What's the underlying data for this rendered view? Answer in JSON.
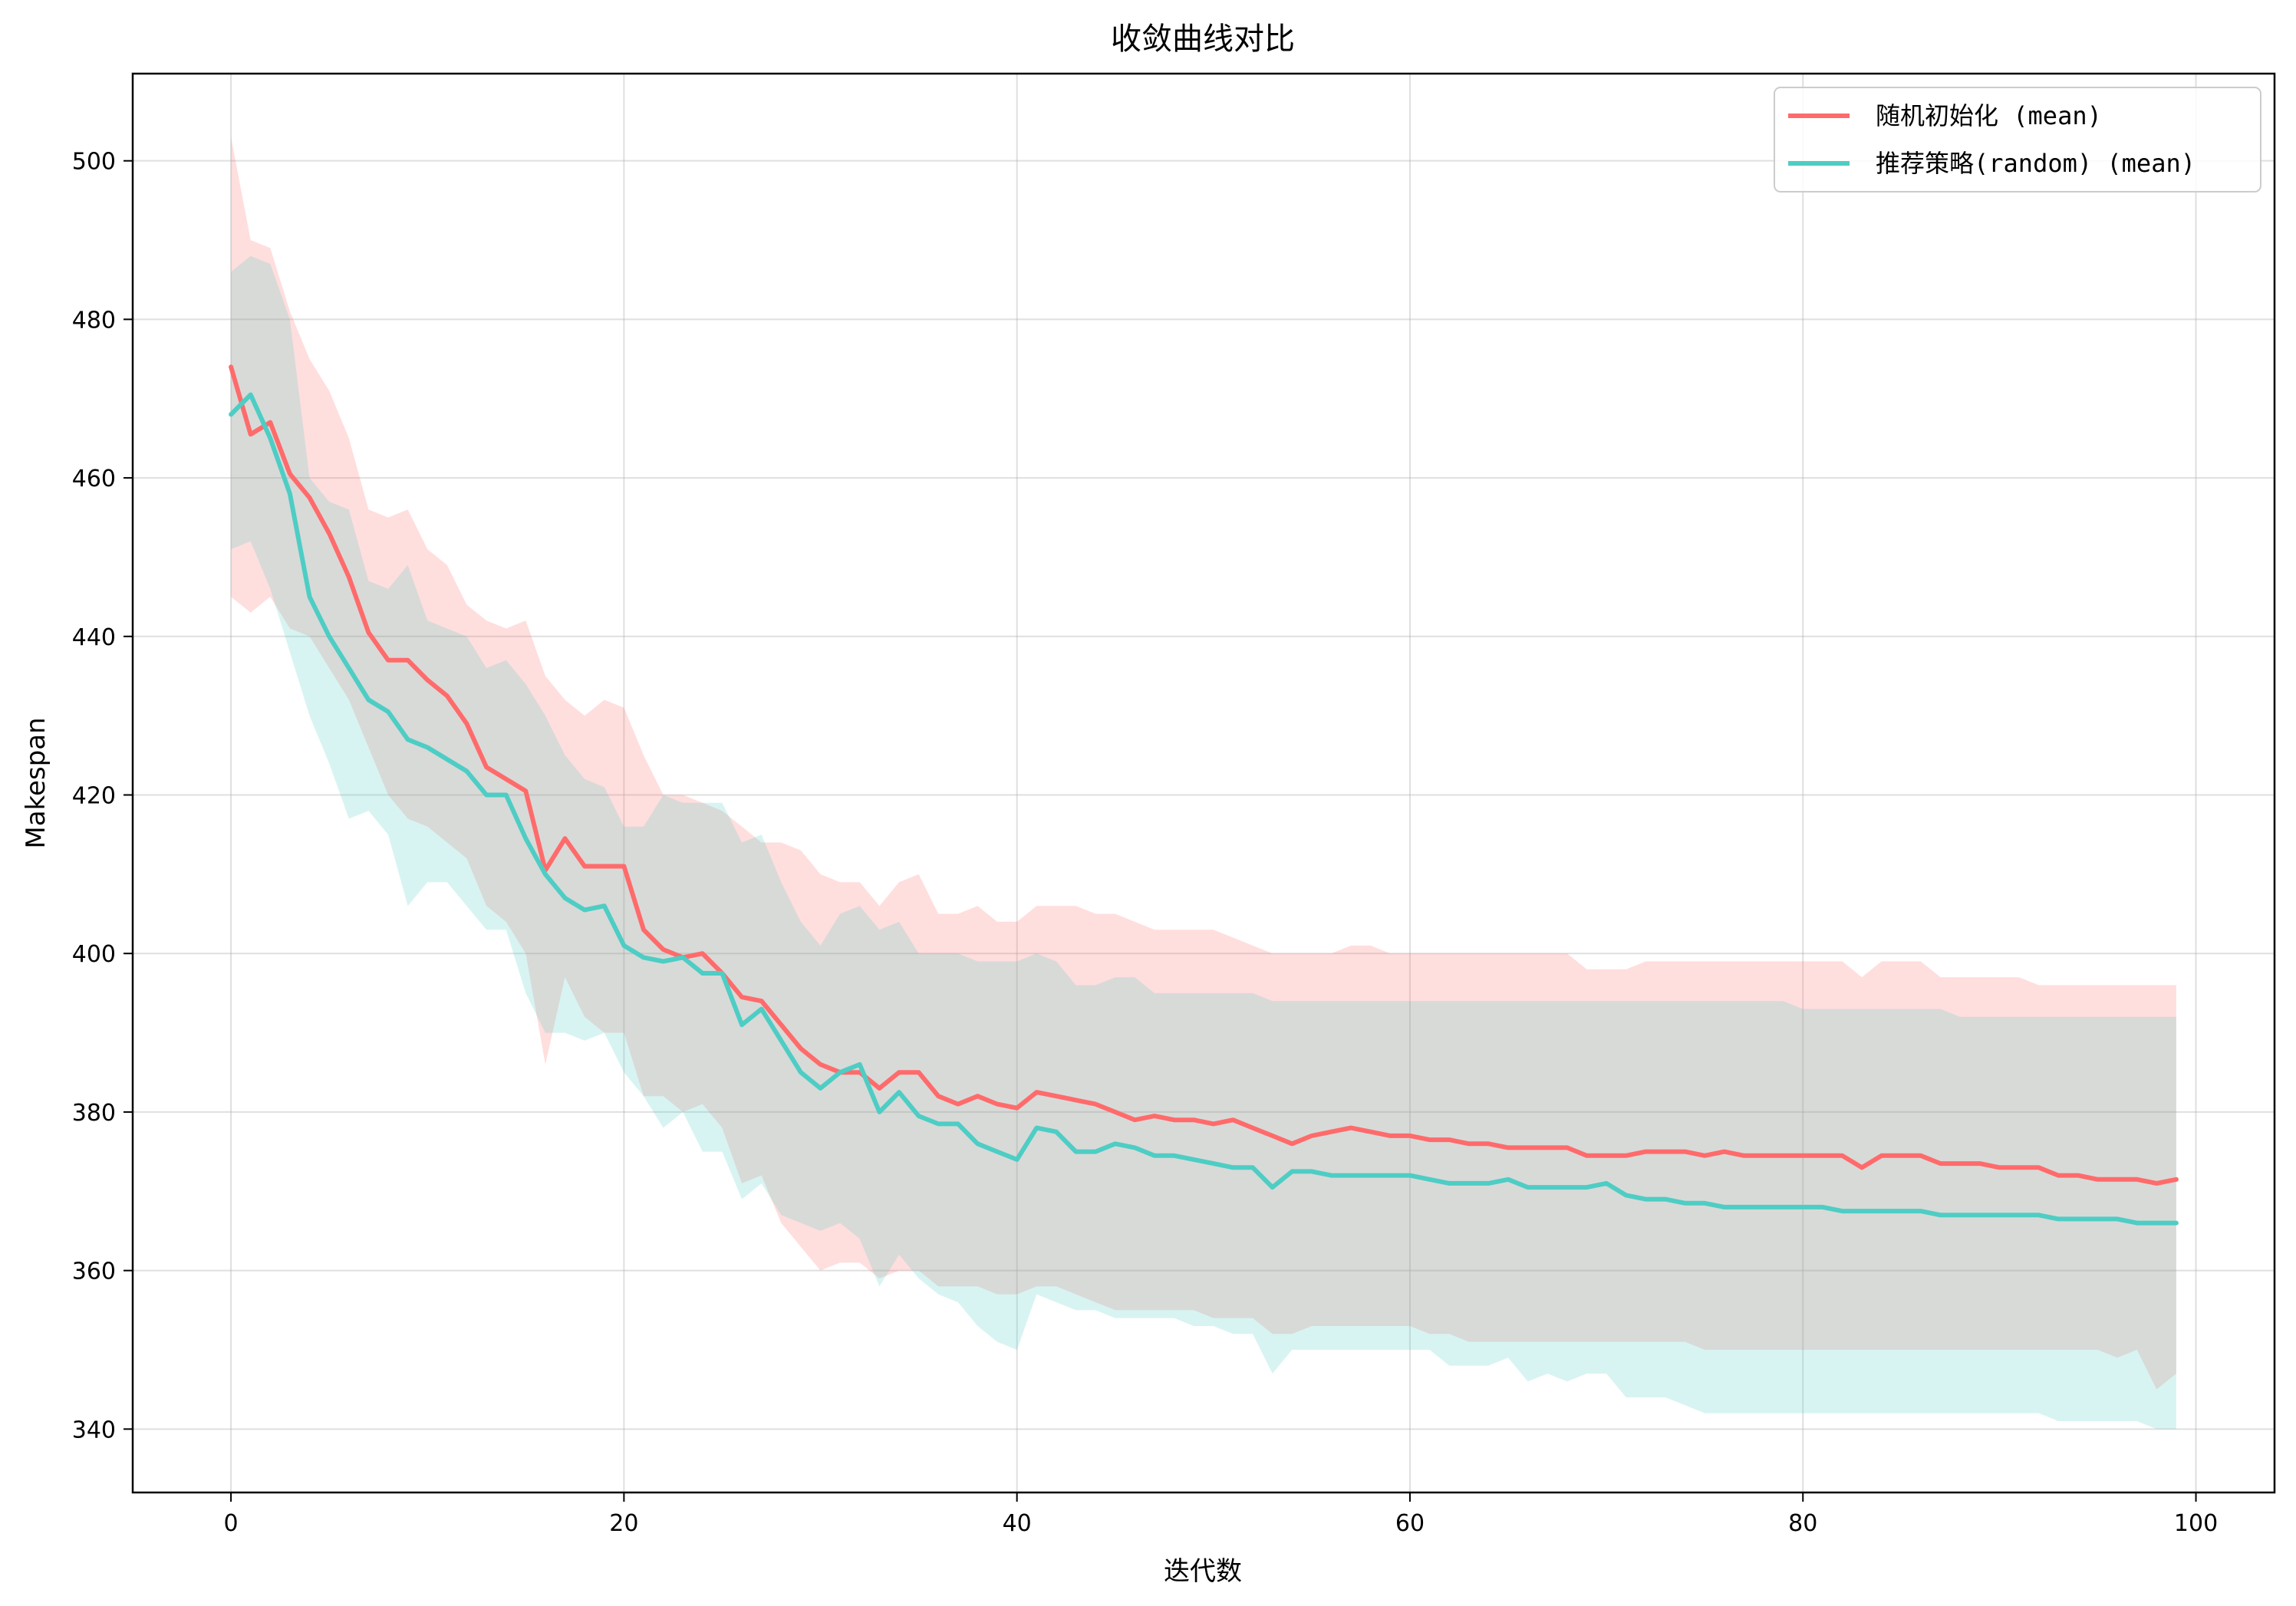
{
  "chart_data": {
    "type": "line",
    "title": "收敛曲线对比",
    "xlabel": "迭代数",
    "ylabel": "Makespan",
    "xlim": [
      -5,
      104
    ],
    "ylim": [
      332,
      511
    ],
    "xticks": [
      0,
      20,
      40,
      60,
      80,
      100
    ],
    "yticks": [
      340,
      360,
      380,
      400,
      420,
      440,
      460,
      480,
      500
    ],
    "grid": true,
    "legend_position": "top-right",
    "colors": {
      "series_0": "#ff6b6b",
      "series_1": "#4ecdc4"
    },
    "series": [
      {
        "name": "随机初始化 (mean)",
        "color": "#ff6b6b",
        "x": [
          0,
          1,
          2,
          3,
          4,
          5,
          6,
          7,
          8,
          9,
          10,
          11,
          12,
          13,
          14,
          15,
          16,
          17,
          18,
          19,
          20,
          21,
          22,
          23,
          24,
          25,
          26,
          27,
          28,
          29,
          30,
          31,
          32,
          33,
          34,
          35,
          36,
          37,
          38,
          39,
          40,
          41,
          42,
          43,
          44,
          45,
          46,
          47,
          48,
          49,
          50,
          51,
          52,
          53,
          54,
          55,
          56,
          57,
          58,
          59,
          60,
          61,
          62,
          63,
          64,
          65,
          66,
          67,
          68,
          69,
          70,
          71,
          72,
          73,
          74,
          75,
          76,
          77,
          78,
          79,
          80,
          81,
          82,
          83,
          84,
          85,
          86,
          87,
          88,
          89,
          90,
          91,
          92,
          93,
          94,
          95,
          96,
          97,
          98,
          99
        ],
        "values": [
          474,
          465.5,
          467,
          460.5,
          457.5,
          453,
          447.5,
          440.5,
          437,
          437,
          434.5,
          432.5,
          429,
          423.5,
          422,
          420.5,
          410.5,
          414.5,
          411,
          411,
          411,
          403,
          400.5,
          399.5,
          400,
          397.5,
          394.5,
          394,
          391,
          388,
          386,
          385,
          385,
          383,
          385,
          385,
          382,
          381,
          382,
          381,
          380.5,
          382.5,
          382,
          381.5,
          381,
          380,
          379,
          379.5,
          379,
          379,
          378.5,
          379,
          378,
          377,
          376,
          377,
          377.5,
          378,
          377.5,
          377,
          377,
          376.5,
          376.5,
          376,
          376,
          375.5,
          375.5,
          375.5,
          375.5,
          374.5,
          374.5,
          374.5,
          375,
          375,
          375,
          374.5,
          375,
          374.5,
          374.5,
          374.5,
          374.5,
          374.5,
          374.5,
          373,
          374.5,
          374.5,
          374.5,
          373.5,
          373.5,
          373.5,
          373,
          373,
          373,
          372,
          372,
          371.5,
          371.5,
          371.5,
          371,
          371.5
        ],
        "upper": [
          503,
          490,
          489,
          481,
          475,
          471,
          465,
          456,
          455,
          456,
          451,
          449,
          444,
          442,
          441,
          442,
          435,
          432,
          430,
          432,
          431,
          425,
          420,
          420,
          419,
          418,
          416,
          414,
          414,
          413,
          410,
          409,
          409,
          406,
          409,
          410,
          405,
          405,
          406,
          404,
          404,
          406,
          406,
          406,
          405,
          405,
          404,
          403,
          403,
          403,
          403,
          402,
          401,
          400,
          400,
          400,
          400,
          401,
          401,
          400,
          400,
          400,
          400,
          400,
          400,
          400,
          400,
          400,
          400,
          398,
          398,
          398,
          399,
          399,
          399,
          399,
          399,
          399,
          399,
          399,
          399,
          399,
          399,
          397,
          399,
          399,
          399,
          397,
          397,
          397,
          397,
          397,
          396,
          396,
          396,
          396,
          396,
          396,
          396,
          396
        ],
        "lower": [
          445,
          443,
          445,
          441,
          440,
          436,
          432,
          426,
          420,
          417,
          416,
          414,
          412,
          406,
          404,
          400,
          386,
          397,
          392,
          390,
          390,
          382,
          382,
          380,
          381,
          378,
          371,
          372,
          366,
          363,
          360,
          361,
          361,
          359,
          360,
          360,
          358,
          358,
          358,
          357,
          357,
          358,
          358,
          357,
          356,
          355,
          355,
          355,
          355,
          355,
          354,
          354,
          354,
          352,
          352,
          353,
          353,
          353,
          353,
          353,
          353,
          352,
          352,
          351,
          351,
          351,
          351,
          351,
          351,
          351,
          351,
          351,
          351,
          351,
          351,
          350,
          350,
          350,
          350,
          350,
          350,
          350,
          350,
          350,
          350,
          350,
          350,
          350,
          350,
          350,
          350,
          350,
          350,
          350,
          350,
          350,
          349,
          350,
          345,
          347
        ]
      },
      {
        "name": "推荐策略(random) (mean)",
        "color": "#4ecdc4",
        "x": [
          0,
          1,
          2,
          3,
          4,
          5,
          6,
          7,
          8,
          9,
          10,
          11,
          12,
          13,
          14,
          15,
          16,
          17,
          18,
          19,
          20,
          21,
          22,
          23,
          24,
          25,
          26,
          27,
          28,
          29,
          30,
          31,
          32,
          33,
          34,
          35,
          36,
          37,
          38,
          39,
          40,
          41,
          42,
          43,
          44,
          45,
          46,
          47,
          48,
          49,
          50,
          51,
          52,
          53,
          54,
          55,
          56,
          57,
          58,
          59,
          60,
          61,
          62,
          63,
          64,
          65,
          66,
          67,
          68,
          69,
          70,
          71,
          72,
          73,
          74,
          75,
          76,
          77,
          78,
          79,
          80,
          81,
          82,
          83,
          84,
          85,
          86,
          87,
          88,
          89,
          90,
          91,
          92,
          93,
          94,
          95,
          96,
          97,
          98,
          99
        ],
        "values": [
          468,
          470.5,
          465,
          458,
          445,
          440,
          436,
          432,
          430.5,
          427,
          426,
          424.5,
          423,
          420,
          420,
          414.5,
          410,
          407,
          405.5,
          406,
          401,
          399.5,
          399,
          399.5,
          397.5,
          397.5,
          391,
          393,
          389,
          385,
          383,
          385,
          386,
          380,
          382.5,
          379.5,
          378.5,
          378.5,
          376,
          375,
          374,
          378,
          377.5,
          375,
          375,
          376,
          375.5,
          374.5,
          374.5,
          374,
          373.5,
          373,
          373,
          370.5,
          372.5,
          372.5,
          372,
          372,
          372,
          372,
          372,
          371.5,
          371,
          371,
          371,
          371.5,
          370.5,
          370.5,
          370.5,
          370.5,
          371,
          369.5,
          369,
          369,
          368.5,
          368.5,
          368,
          368,
          368,
          368,
          368,
          368,
          367.5,
          367.5,
          367.5,
          367.5,
          367.5,
          367,
          367,
          367,
          367,
          367,
          367,
          366.5,
          366.5,
          366.5,
          366.5,
          366,
          366,
          366
        ],
        "upper": [
          486,
          488,
          487,
          480,
          460,
          457,
          456,
          447,
          446,
          449,
          442,
          441,
          440,
          436,
          437,
          434,
          430,
          425,
          422,
          421,
          416,
          416,
          420,
          419,
          419,
          419,
          414,
          415,
          409,
          404,
          401,
          405,
          406,
          403,
          404,
          400,
          400,
          400,
          399,
          399,
          399,
          400,
          399,
          396,
          396,
          397,
          397,
          395,
          395,
          395,
          395,
          395,
          395,
          394,
          394,
          394,
          394,
          394,
          394,
          394,
          394,
          394,
          394,
          394,
          394,
          394,
          394,
          394,
          394,
          394,
          394,
          394,
          394,
          394,
          394,
          394,
          394,
          394,
          394,
          394,
          393,
          393,
          393,
          393,
          393,
          393,
          393,
          393,
          392,
          392,
          392,
          392,
          392,
          392,
          392,
          392,
          392,
          392,
          392,
          392
        ],
        "lower": [
          451,
          452,
          446,
          438,
          430,
          424,
          417,
          418,
          415,
          406,
          409,
          409,
          406,
          403,
          403,
          395,
          390,
          390,
          389,
          390,
          385,
          382,
          378,
          380,
          375,
          375,
          369,
          371,
          367,
          366,
          365,
          366,
          364,
          358,
          362,
          359,
          357,
          356,
          353,
          351,
          350,
          357,
          356,
          355,
          355,
          354,
          354,
          354,
          354,
          353,
          353,
          352,
          352,
          347,
          350,
          350,
          350,
          350,
          350,
          350,
          350,
          350,
          348,
          348,
          348,
          349,
          346,
          347,
          346,
          347,
          347,
          344,
          344,
          344,
          343,
          342,
          342,
          342,
          342,
          342,
          342,
          342,
          342,
          342,
          342,
          342,
          342,
          342,
          342,
          342,
          342,
          342,
          342,
          341,
          341,
          341,
          341,
          341,
          340,
          340
        ]
      }
    ]
  }
}
